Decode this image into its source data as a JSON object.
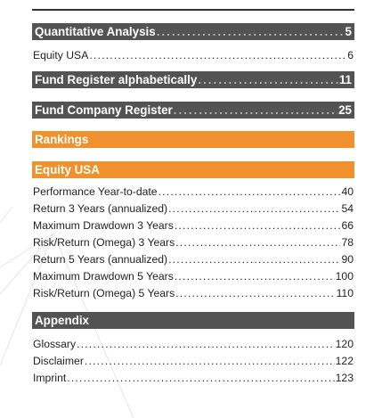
{
  "sections": [
    {
      "label": "Quantitative Analysis",
      "page": "5"
    },
    {
      "label": "Equity USA",
      "page": "6"
    },
    {
      "label": "Fund Register alphabetically",
      "page": "11"
    },
    {
      "label": "Fund Company Register",
      "page": "25"
    },
    {
      "label": "Rankings"
    },
    {
      "label": "Equity USA"
    },
    {
      "label": "Appendix"
    }
  ],
  "rankings": [
    {
      "label": "Performance Year-to-date",
      "page": "40"
    },
    {
      "label": "Return 3 Years (annualized)",
      "page": "54"
    },
    {
      "label": "Maximum Drawdown 3 Years",
      "page": "66"
    },
    {
      "label": "Risk/Return (Omega) 3 Years",
      "page": "78"
    },
    {
      "label": "Return 5 Years (annualized)",
      "page": "90"
    },
    {
      "label": "Maximum Drawdown 5 Years",
      "page": "100"
    },
    {
      "label": "Risk/Return (Omega) 5 Years",
      "page": "110"
    }
  ],
  "appendix": [
    {
      "label": "Glossary",
      "page": "120"
    },
    {
      "label": "Disclaimer",
      "page": "122"
    },
    {
      "label": "Imprint",
      "page": "123"
    }
  ]
}
